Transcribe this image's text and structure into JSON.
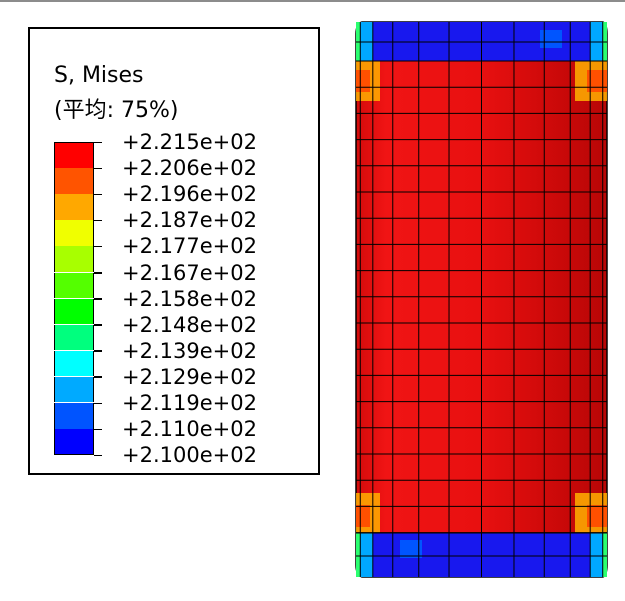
{
  "legend": {
    "title": "S, Mises",
    "subtitle": "(平均: 75%)",
    "colors": [
      "#ff0000",
      "#ff5400",
      "#ffa800",
      "#f0ff00",
      "#a8ff00",
      "#54ff00",
      "#00ff00",
      "#00ff7e",
      "#00ffff",
      "#00aaff",
      "#0054ff",
      "#0000ff"
    ],
    "values": [
      "+2.215e+02",
      "+2.206e+02",
      "+2.196e+02",
      "+2.187e+02",
      "+2.177e+02",
      "+2.167e+02",
      "+2.158e+02",
      "+2.148e+02",
      "+2.139e+02",
      "+2.129e+02",
      "+2.119e+02",
      "+2.110e+02",
      "+2.100e+02"
    ]
  },
  "model": {
    "body_color": "#e60d0d",
    "cap_color": "#1a1aee"
  }
}
